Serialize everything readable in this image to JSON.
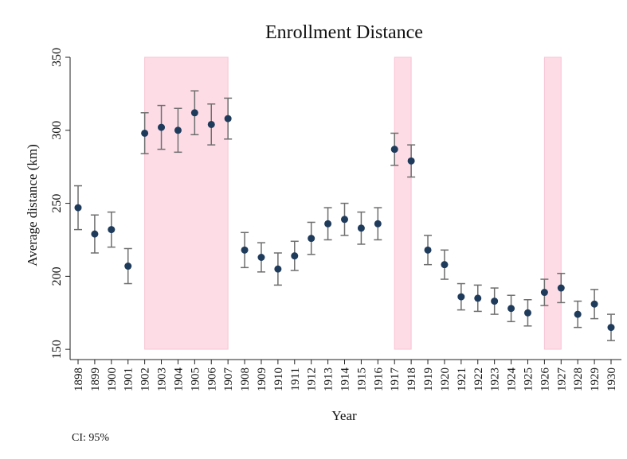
{
  "chart_data": {
    "type": "errorbar",
    "title": "Enrollment Distance",
    "x_label": "Year",
    "y_label": "Average distance (km)",
    "note": "CI: 95%",
    "categories": [
      "1898",
      "1899",
      "1900",
      "1901",
      "1902",
      "1903",
      "1904",
      "1905",
      "1906",
      "1907",
      "1908",
      "1909",
      "1910",
      "1911",
      "1912",
      "1913",
      "1914",
      "1915",
      "1916",
      "1917",
      "1918",
      "1919",
      "1920",
      "1921",
      "1922",
      "1923",
      "1924",
      "1925",
      "1926",
      "1927",
      "1928",
      "1929",
      "1930"
    ],
    "values": [
      247,
      229,
      232,
      207,
      298,
      302,
      300,
      312,
      304,
      308,
      218,
      213,
      205,
      214,
      226,
      236,
      239,
      233,
      236,
      287,
      279,
      218,
      208,
      186,
      185,
      183,
      178,
      175,
      189,
      192,
      174,
      181,
      165
    ],
    "errors": [
      15,
      13,
      12,
      12,
      14,
      15,
      15,
      15,
      14,
      14,
      12,
      10,
      11,
      10,
      11,
      11,
      11,
      11,
      11,
      11,
      11,
      10,
      10,
      9,
      9,
      9,
      9,
      9,
      9,
      10,
      9,
      10,
      9
    ],
    "color": "#1f3b5c",
    "error_color": "#6e6e6e",
    "shaded": [
      [
        "1902",
        "1907"
      ],
      [
        "1917",
        "1918"
      ],
      [
        "1926",
        "1927"
      ]
    ],
    "shade_color": "#fddce6",
    "ylim": [
      143,
      350
    ],
    "yticks": [
      150,
      200,
      250,
      300,
      350
    ]
  }
}
